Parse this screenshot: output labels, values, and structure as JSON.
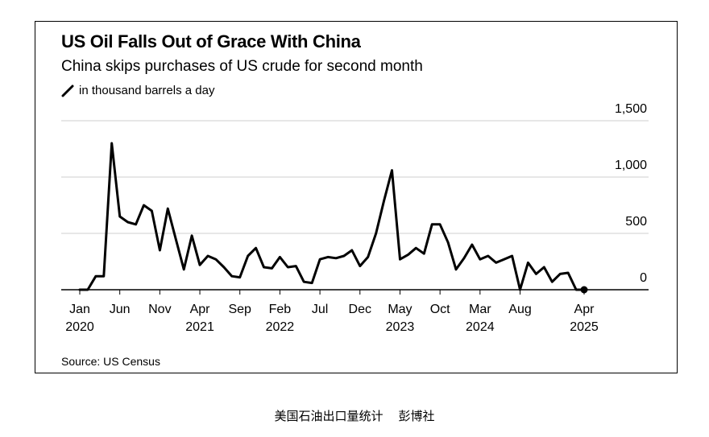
{
  "caption": "美国石油出口量统计    彭博社",
  "chart_data": {
    "type": "line",
    "title": "US Oil Falls Out of Grace With China",
    "subtitle": "China skips purchases of US crude for second month",
    "legend": [
      {
        "name": "in thousand barrels a day",
        "color": "#000000"
      }
    ],
    "source": "Source: US Census",
    "ylim": [
      0,
      1500
    ],
    "yticks": [
      {
        "value": 0,
        "label": "0"
      },
      {
        "value": 500,
        "label": "500"
      },
      {
        "value": 1000,
        "label": "1,000"
      },
      {
        "value": 1500,
        "label": "1,500"
      }
    ],
    "xticks": [
      {
        "index": 0,
        "label": "Jan",
        "year": "2020"
      },
      {
        "index": 5,
        "label": "Jun",
        "year": ""
      },
      {
        "index": 10,
        "label": "Nov",
        "year": ""
      },
      {
        "index": 15,
        "label": "Apr",
        "year": "2021"
      },
      {
        "index": 20,
        "label": "Sep",
        "year": ""
      },
      {
        "index": 25,
        "label": "Feb",
        "year": "2022"
      },
      {
        "index": 30,
        "label": "Jul",
        "year": ""
      },
      {
        "index": 35,
        "label": "Dec",
        "year": ""
      },
      {
        "index": 40,
        "label": "May",
        "year": "2023"
      },
      {
        "index": 45,
        "label": "Oct",
        "year": ""
      },
      {
        "index": 50,
        "label": "Mar",
        "year": "2024"
      },
      {
        "index": 55,
        "label": "Aug",
        "year": ""
      },
      {
        "index": 63,
        "label": "Apr",
        "year": "2025"
      }
    ],
    "series": [
      {
        "name": "in thousand barrels a day",
        "color": "#000000",
        "values": [
          0,
          0,
          120,
          120,
          1300,
          650,
          600,
          580,
          750,
          700,
          350,
          720,
          450,
          180,
          480,
          220,
          300,
          270,
          200,
          120,
          110,
          300,
          370,
          200,
          190,
          290,
          200,
          210,
          70,
          60,
          270,
          290,
          280,
          300,
          350,
          210,
          290,
          500,
          790,
          1060,
          270,
          310,
          370,
          320,
          580,
          580,
          420,
          180,
          280,
          400,
          270,
          300,
          240,
          270,
          300,
          0,
          240,
          140,
          200,
          70,
          140,
          150,
          0,
          0
        ],
        "end_marker": true
      }
    ]
  }
}
